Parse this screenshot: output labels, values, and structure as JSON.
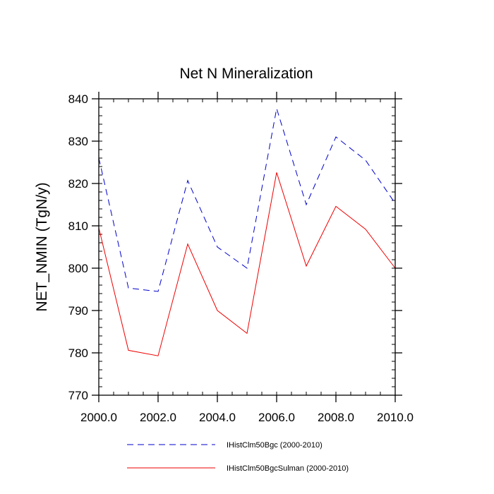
{
  "chart_data": {
    "type": "line",
    "title": "Net N Mineralization",
    "xlabel": "",
    "ylabel": "NET_NMIN  (TgN/y)",
    "xlim": [
      2000,
      2010
    ],
    "ylim": [
      770,
      840
    ],
    "x_ticks": [
      2000,
      2002,
      2004,
      2006,
      2008,
      2010
    ],
    "x_tick_labels": [
      "2000.0",
      "2002.0",
      "2004.0",
      "2006.0",
      "2008.0",
      "2010.0"
    ],
    "y_ticks": [
      770,
      780,
      790,
      800,
      810,
      820,
      830,
      840
    ],
    "y_tick_labels": [
      "770",
      "780",
      "790",
      "800",
      "810",
      "820",
      "830",
      "840"
    ],
    "grid": false,
    "x": [
      2000,
      2001,
      2002,
      2003,
      2004,
      2005,
      2006,
      2007,
      2008,
      2009,
      2010
    ],
    "series": [
      {
        "name": "IHistClm50Bgc (2000-2010)",
        "color": "#0000cc",
        "style": "dashed",
        "values": [
          826,
          795.3,
          794.5,
          820.7,
          805,
          800,
          837.7,
          815,
          831,
          825.5,
          815.3
        ]
      },
      {
        "name": "IHistClm50BgcSulman (2000-2010)",
        "color": "#ee0000",
        "style": "solid",
        "values": [
          809.5,
          780.6,
          779.3,
          805.7,
          790,
          784.6,
          822.6,
          800.5,
          814.6,
          809.2,
          800
        ]
      }
    ],
    "legend_position": "bottom"
  }
}
